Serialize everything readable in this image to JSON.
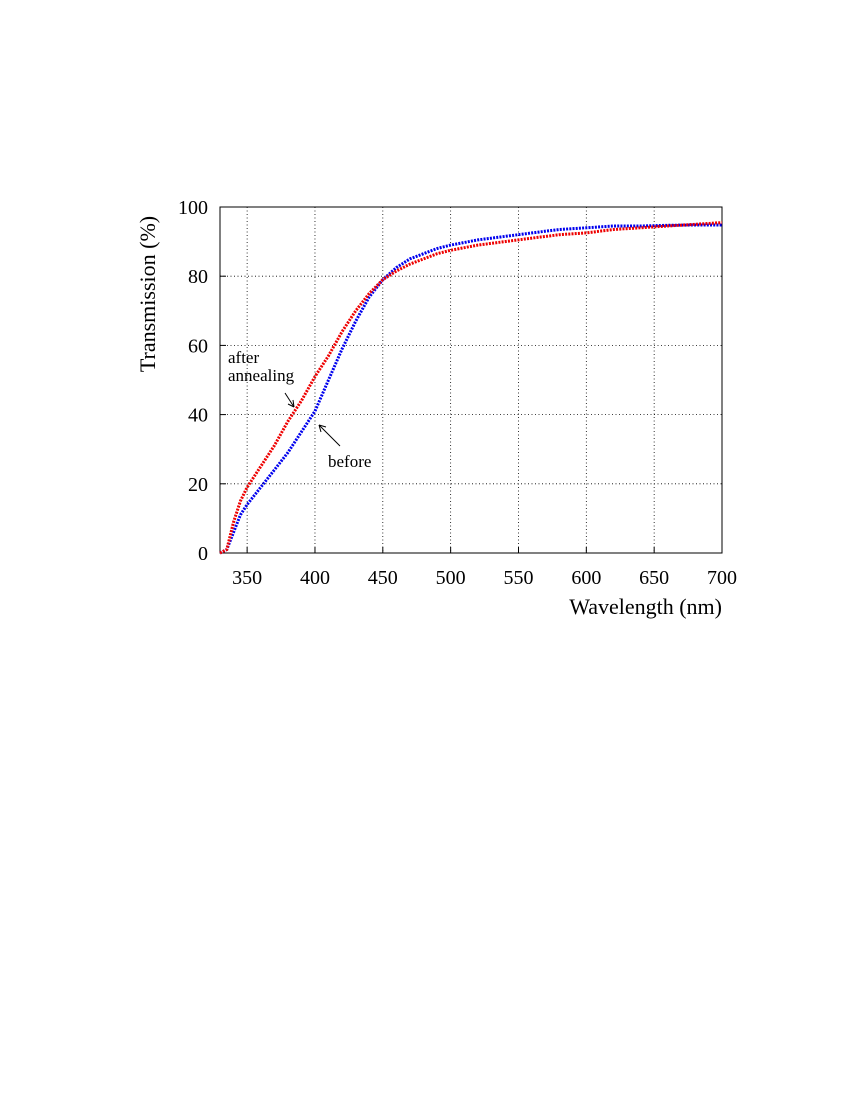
{
  "chart_data": {
    "type": "line",
    "x_label": "Wavelength (nm)",
    "y_label": "Transmission (%)",
    "x": [
      330,
      335,
      340,
      345,
      350,
      360,
      370,
      380,
      390,
      400,
      410,
      420,
      430,
      440,
      450,
      460,
      470,
      480,
      490,
      500,
      520,
      540,
      560,
      580,
      600,
      620,
      640,
      660,
      680,
      700
    ],
    "series": [
      {
        "name": "before",
        "color": "#0000ee",
        "values": [
          0,
          1,
          6,
          11,
          14,
          19,
          24,
          29,
          35,
          41,
          50,
          59,
          67,
          74,
          79,
          82.5,
          85,
          86.5,
          88,
          89,
          90.5,
          91.5,
          92.5,
          93.5,
          94,
          94.5,
          94.5,
          94.7,
          94.8,
          94.8
        ]
      },
      {
        "name": "after annealing",
        "color": "#ee0000",
        "values": [
          0,
          1,
          9,
          15,
          19,
          25,
          31,
          38,
          44,
          51,
          57,
          64,
          70,
          75,
          79,
          81.5,
          83.5,
          85,
          86.5,
          87.5,
          89,
          90,
          91,
          92,
          92.5,
          93.5,
          94,
          94.5,
          95,
          95.5
        ]
      }
    ],
    "annotations": [
      [
        "after",
        "annealing"
      ],
      [
        "before"
      ]
    ],
    "xlim": [
      330,
      700
    ],
    "xticks": [
      350,
      400,
      450,
      500,
      550,
      600,
      650,
      700
    ],
    "ylim": [
      0,
      100
    ],
    "yticks": [
      0,
      20,
      40,
      60,
      80,
      100
    ],
    "grid": true
  }
}
